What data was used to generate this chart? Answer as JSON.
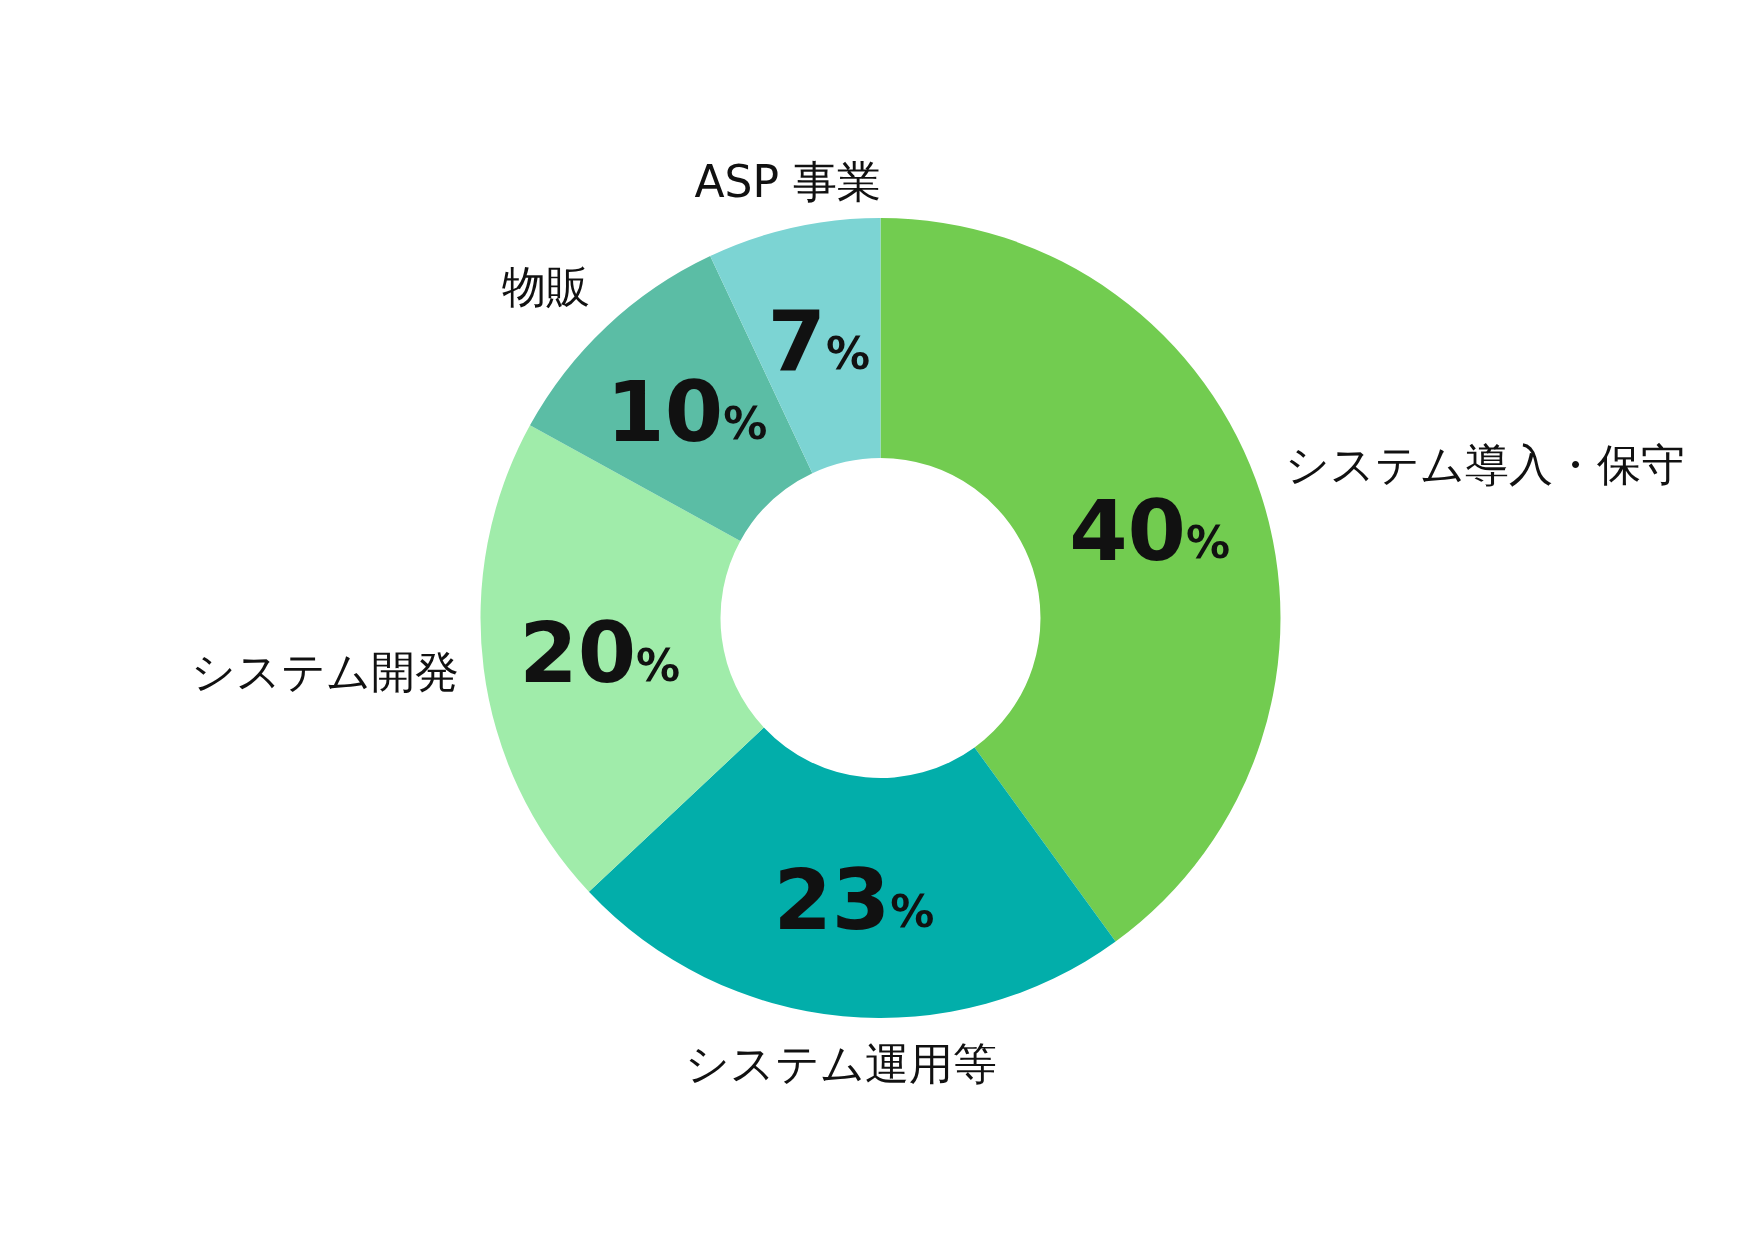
{
  "chart_data": {
    "type": "donut",
    "categories": [
      "システム導入・保守",
      "システム運用等",
      "システム開発",
      "物販",
      "ASP 事業"
    ],
    "values": [
      40,
      23,
      20,
      10,
      7
    ],
    "colors": [
      "#72cc50",
      "#02aeaa",
      "#a0ecaa",
      "#5bbda5",
      "#7cd4d3"
    ],
    "value_labels": [
      "40%",
      "23%",
      "20%",
      "10%",
      "7%"
    ],
    "legend": false
  }
}
